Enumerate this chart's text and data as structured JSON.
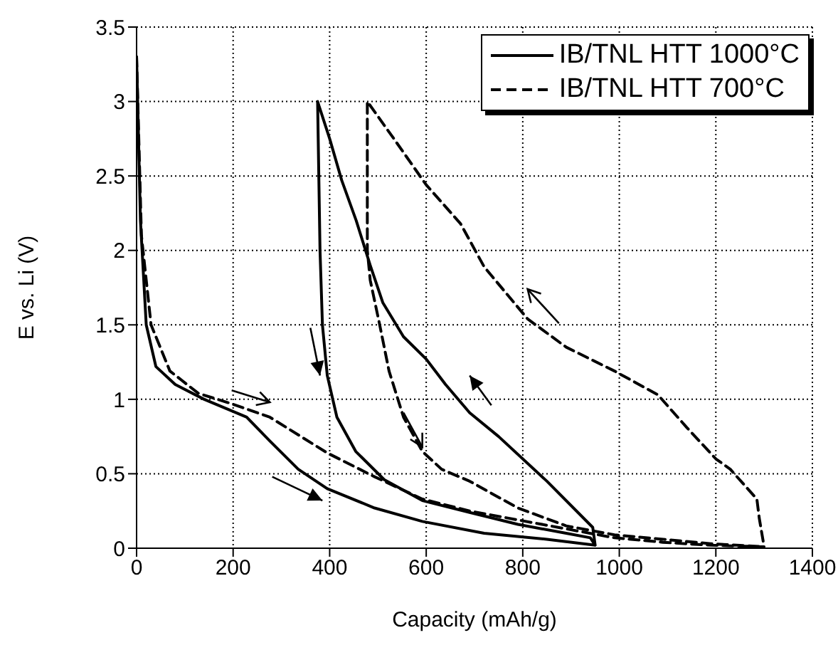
{
  "chart_data": {
    "type": "line",
    "xlabel": "Capacity (mAh/g)",
    "ylabel": "E vs. Li (V)",
    "xlim": [
      0,
      1400
    ],
    "ylim": [
      0,
      3.5
    ],
    "xticks": [
      0,
      200,
      400,
      600,
      800,
      1000,
      1200,
      1400
    ],
    "yticks": [
      0,
      0.5,
      1,
      1.5,
      2,
      2.5,
      3,
      3.5
    ],
    "grid": true,
    "legend": "top right",
    "marker": "none",
    "series": [
      {
        "name": "IB/TNL HTT 1000°C",
        "color": "#000000",
        "line_style": "solid",
        "x": [
          0,
          8,
          20,
          40,
          80,
          140,
          228,
          276,
          335,
          395,
          493,
          592,
          720,
          850,
          950,
          945,
          850,
          750,
          690,
          640,
          600,
          553,
          510,
          484,
          455,
          425,
          400,
          375,
          380,
          385,
          395,
          415,
          454,
          513,
          592,
          690,
          790,
          890,
          940,
          950
        ],
        "values": [
          3.3,
          2.2,
          1.5,
          1.22,
          1.1,
          1.0,
          0.88,
          0.72,
          0.53,
          0.4,
          0.27,
          0.18,
          0.1,
          0.06,
          0.02,
          0.14,
          0.45,
          0.75,
          0.91,
          1.1,
          1.27,
          1.42,
          1.65,
          1.9,
          2.2,
          2.47,
          2.75,
          3.0,
          2.0,
          1.5,
          1.16,
          0.88,
          0.65,
          0.46,
          0.32,
          0.24,
          0.16,
          0.1,
          0.07,
          0.02
        ]
      },
      {
        "name": "IB/TNL HTT 700°C",
        "color": "#000000",
        "line_style": "dashed",
        "x": [
          0,
          10,
          30,
          69,
          128,
          197,
          276,
          395,
          493,
          592,
          690,
          890,
          990,
          1090,
          1190,
          1300,
          1290,
          1285,
          1230,
          1200,
          1140,
          1080,
          990,
          890,
          810,
          720,
          671,
          600,
          533,
          478,
          478,
          484,
          503,
          523,
          553,
          592,
          632,
          690,
          790,
          890,
          990,
          1190,
          1300
        ],
        "values": [
          3.3,
          2.1,
          1.5,
          1.19,
          1.04,
          0.97,
          0.88,
          0.64,
          0.48,
          0.33,
          0.25,
          0.13,
          0.07,
          0.04,
          0.02,
          0.01,
          0.2,
          0.33,
          0.53,
          0.6,
          0.81,
          1.03,
          1.19,
          1.35,
          1.54,
          1.89,
          2.18,
          2.44,
          2.75,
          3.0,
          2.0,
          1.8,
          1.51,
          1.19,
          0.88,
          0.65,
          0.53,
          0.45,
          0.27,
          0.15,
          0.09,
          0.03,
          0.01
        ]
      }
    ]
  }
}
